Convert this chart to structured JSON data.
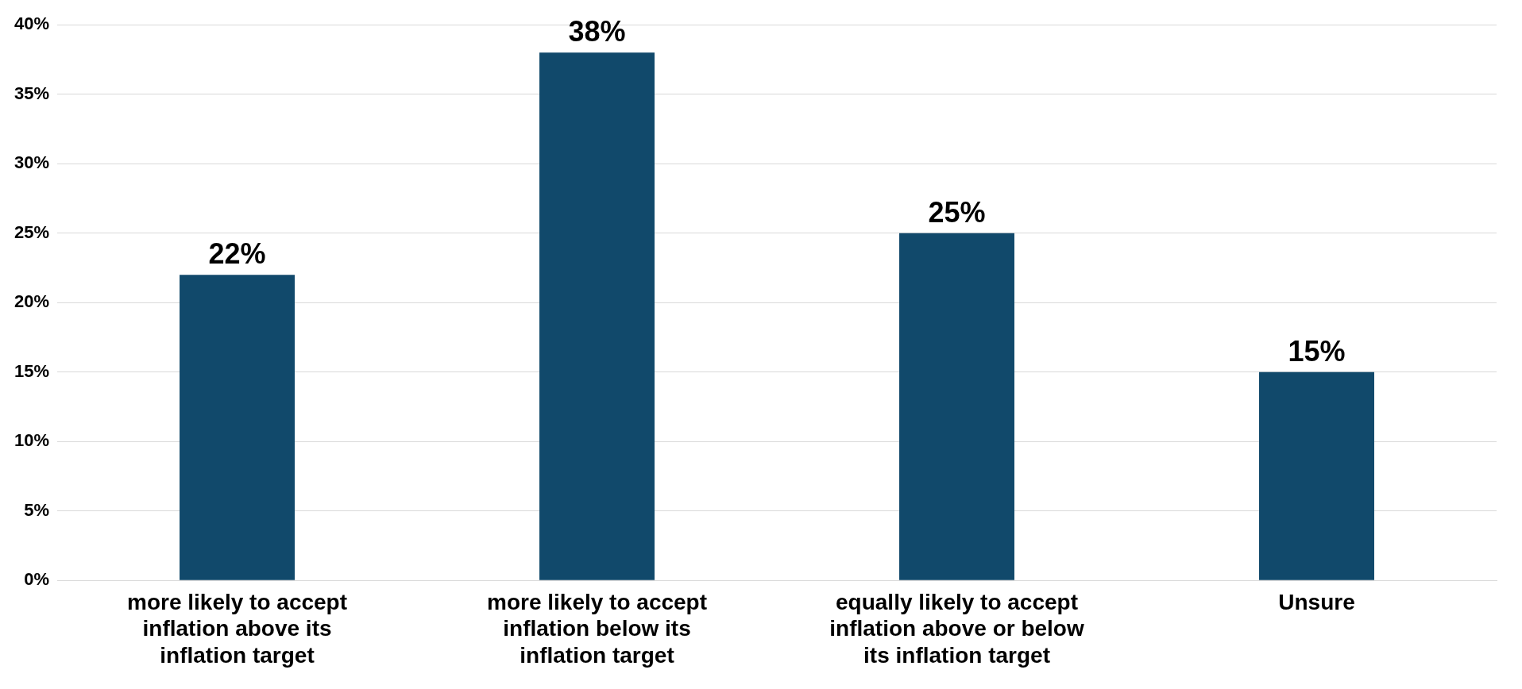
{
  "chart_data": {
    "type": "bar",
    "categories": [
      "more likely to accept inflation above its inflation target",
      "more likely to accept inflation below its inflation target",
      "equally likely to accept inflation above or below its inflation target",
      "Unsure"
    ],
    "values": [
      22,
      38,
      25,
      15
    ],
    "value_labels": [
      "22%",
      "38%",
      "25%",
      "15%"
    ],
    "color": "#11496b",
    "ylim": [
      0,
      40
    ],
    "yticks": [
      {
        "value": 0,
        "label": "0%"
      },
      {
        "value": 5,
        "label": "5%"
      },
      {
        "value": 10,
        "label": "10%"
      },
      {
        "value": 15,
        "label": "15%"
      },
      {
        "value": 20,
        "label": "20%"
      },
      {
        "value": 25,
        "label": "25%"
      },
      {
        "value": 30,
        "label": "30%"
      },
      {
        "value": 35,
        "label": "35%"
      },
      {
        "value": 40,
        "label": "40%"
      }
    ],
    "grid": "y",
    "legend": false
  }
}
